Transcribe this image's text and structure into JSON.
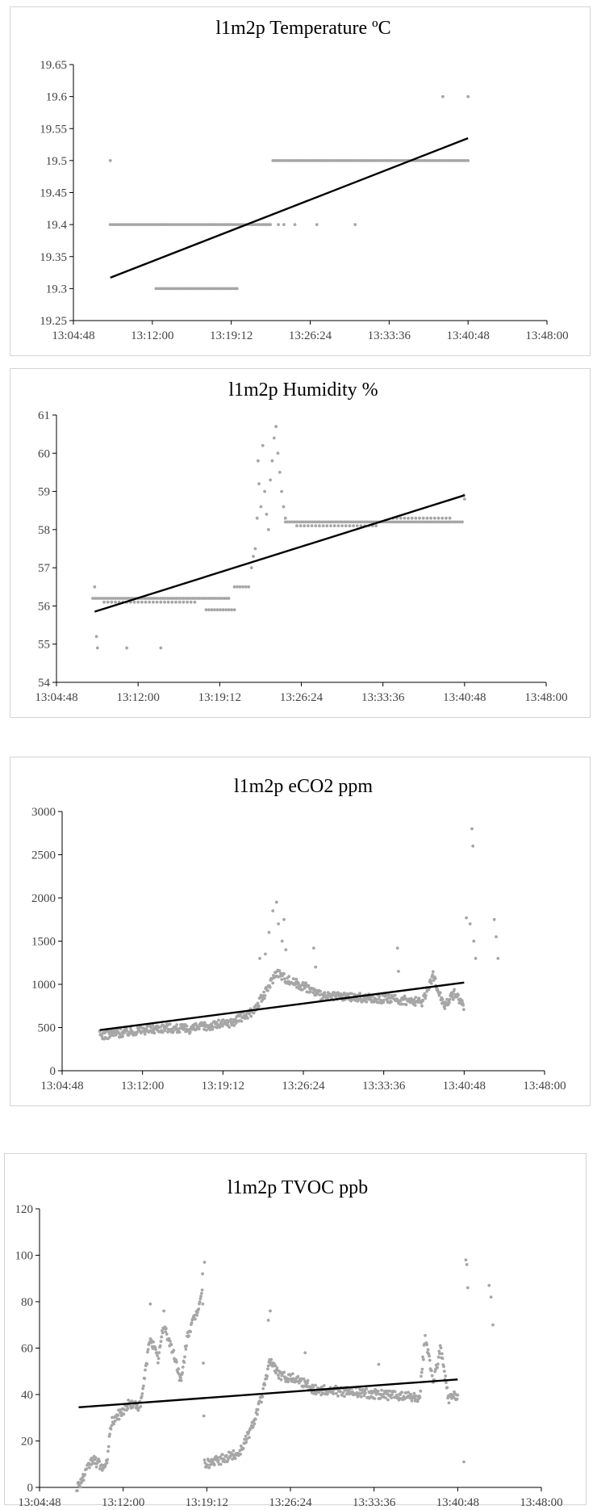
{
  "chart_data": [
    {
      "type": "scatter",
      "title": "l1m2p Temperature ºC",
      "x_ticks": [
        "13:04:48",
        "13:12:00",
        "13:19:12",
        "13:26:24",
        "13:33:36",
        "13:40:48",
        "13:48:00"
      ],
      "x_range": [
        "13:04:48",
        "13:48:00"
      ],
      "y_ticks": [
        "19.25",
        "19.3",
        "19.35",
        "19.4",
        "19.45",
        "19.5",
        "19.55",
        "19.6",
        "19.65"
      ],
      "ylim": [
        19.25,
        19.65
      ],
      "grid": false,
      "legend": "none",
      "series": [
        {
          "kind": "points",
          "segments": [
            {
              "start": "13:08:10",
              "end": "13:22:50",
              "y": 19.4,
              "step_s": 12
            },
            {
              "start": "13:12:20",
              "end": "13:19:50",
              "y": 19.3,
              "step_s": 12
            },
            {
              "start": "13:23:00",
              "end": "13:40:48",
              "y": 19.5,
              "step_s": 12
            }
          ],
          "points": [
            {
              "x": "13:08:10",
              "y": 19.5
            },
            {
              "x": "13:23:30",
              "y": 19.4
            },
            {
              "x": "13:24:00",
              "y": 19.4
            },
            {
              "x": "13:25:00",
              "y": 19.4
            },
            {
              "x": "13:27:00",
              "y": 19.4
            },
            {
              "x": "13:30:30",
              "y": 19.4
            },
            {
              "x": "13:38:30",
              "y": 19.6
            },
            {
              "x": "13:40:48",
              "y": 19.6
            }
          ]
        },
        {
          "kind": "trendline",
          "from": {
            "x": "13:08:10",
            "y": 19.317
          },
          "to": {
            "x": "13:40:48",
            "y": 19.535
          }
        }
      ],
      "colors": {
        "points": "#a6a6a6",
        "trendline": "#000000"
      }
    },
    {
      "type": "scatter",
      "title": "l1m2p Humidity %",
      "x_ticks": [
        "13:04:48",
        "13:12:00",
        "13:19:12",
        "13:26:24",
        "13:33:36",
        "13:40:48",
        "13:48:00"
      ],
      "x_range": [
        "13:04:48",
        "13:48:00"
      ],
      "y_ticks": [
        "54",
        "55",
        "56",
        "57",
        "58",
        "59",
        "60",
        "61"
      ],
      "ylim": [
        54,
        61
      ],
      "grid": false,
      "legend": "none",
      "series": [
        {
          "kind": "points",
          "segments": [
            {
              "start": "13:08:00",
              "end": "13:20:00",
              "y": 56.2,
              "step_s": 12
            },
            {
              "start": "13:09:00",
              "end": "13:17:00",
              "y": 56.1,
              "step_s": 20
            },
            {
              "start": "13:18:00",
              "end": "13:20:30",
              "y": 55.9,
              "step_s": 15
            },
            {
              "start": "13:20:30",
              "end": "13:21:45",
              "y": 56.5,
              "step_s": 15
            },
            {
              "start": "13:25:00",
              "end": "13:40:40",
              "y": 58.2,
              "step_s": 12
            },
            {
              "start": "13:26:00",
              "end": "13:33:00",
              "y": 58.1,
              "step_s": 20
            },
            {
              "start": "13:34:30",
              "end": "13:39:30",
              "y": 58.3,
              "step_s": 20
            }
          ],
          "points": [
            {
              "x": "13:08:10",
              "y": 56.5
            },
            {
              "x": "13:08:20",
              "y": 55.2
            },
            {
              "x": "13:08:25",
              "y": 54.9
            },
            {
              "x": "13:11:00",
              "y": 54.9
            },
            {
              "x": "13:14:00",
              "y": 54.9
            },
            {
              "x": "13:22:00",
              "y": 57.0
            },
            {
              "x": "13:22:10",
              "y": 57.3
            },
            {
              "x": "13:22:20",
              "y": 57.5
            },
            {
              "x": "13:22:30",
              "y": 58.3
            },
            {
              "x": "13:22:35",
              "y": 59.8
            },
            {
              "x": "13:22:40",
              "y": 59.2
            },
            {
              "x": "13:22:50",
              "y": 58.6
            },
            {
              "x": "13:23:00",
              "y": 60.2
            },
            {
              "x": "13:23:10",
              "y": 59.0
            },
            {
              "x": "13:23:20",
              "y": 58.4
            },
            {
              "x": "13:23:30",
              "y": 58.0
            },
            {
              "x": "13:23:40",
              "y": 59.3
            },
            {
              "x": "13:23:50",
              "y": 59.8
            },
            {
              "x": "13:24:00",
              "y": 60.4
            },
            {
              "x": "13:24:10",
              "y": 60.7
            },
            {
              "x": "13:24:20",
              "y": 60.0
            },
            {
              "x": "13:24:30",
              "y": 59.5
            },
            {
              "x": "13:24:40",
              "y": 59.0
            },
            {
              "x": "13:24:50",
              "y": 58.6
            },
            {
              "x": "13:25:00",
              "y": 58.3
            },
            {
              "x": "13:40:48",
              "y": 58.8
            },
            {
              "x": "13:40:45",
              "y": 58.9
            }
          ]
        },
        {
          "kind": "trendline",
          "from": {
            "x": "13:08:10",
            "y": 55.85
          },
          "to": {
            "x": "13:40:48",
            "y": 58.9
          }
        }
      ],
      "colors": {
        "points": "#a6a6a6",
        "trendline": "#000000"
      }
    },
    {
      "type": "scatter",
      "title": "l1m2p eCO2 ppm",
      "x_ticks": [
        "13:04:48",
        "13:12:00",
        "13:19:12",
        "13:26:24",
        "13:33:36",
        "13:40:48",
        "13:48:00"
      ],
      "x_range": [
        "13:04:48",
        "13:48:00"
      ],
      "y_ticks": [
        "0",
        "500",
        "1000",
        "1500",
        "2000",
        "2500",
        "3000"
      ],
      "ylim": [
        0,
        3000
      ],
      "grid": false,
      "legend": "none",
      "series": [
        {
          "kind": "points",
          "profile": [
            {
              "x": "13:08:10",
              "y": 410
            },
            {
              "x": "13:12:00",
              "y": 470
            },
            {
              "x": "13:14:00",
              "y": 500
            },
            {
              "x": "13:16:00",
              "y": 480
            },
            {
              "x": "13:18:00",
              "y": 520
            },
            {
              "x": "13:20:00",
              "y": 560
            },
            {
              "x": "13:22:00",
              "y": 700
            },
            {
              "x": "13:23:00",
              "y": 900
            },
            {
              "x": "13:24:00",
              "y": 1150
            },
            {
              "x": "13:25:00",
              "y": 1050
            },
            {
              "x": "13:27:00",
              "y": 950
            },
            {
              "x": "13:28:00",
              "y": 860
            },
            {
              "x": "13:31:00",
              "y": 850
            },
            {
              "x": "13:35:00",
              "y": 820
            },
            {
              "x": "13:37:00",
              "y": 790
            },
            {
              "x": "13:38:00",
              "y": 1100
            },
            {
              "x": "13:39:00",
              "y": 760
            },
            {
              "x": "13:40:00",
              "y": 900
            },
            {
              "x": "13:40:48",
              "y": 750
            }
          ],
          "points": [
            {
              "x": "13:23:00",
              "y": 1350
            },
            {
              "x": "13:23:20",
              "y": 1600
            },
            {
              "x": "13:23:40",
              "y": 1850
            },
            {
              "x": "13:24:00",
              "y": 1950
            },
            {
              "x": "13:24:10",
              "y": 1700
            },
            {
              "x": "13:24:30",
              "y": 1500
            },
            {
              "x": "13:24:40",
              "y": 1750
            },
            {
              "x": "13:24:50",
              "y": 1400
            },
            {
              "x": "13:22:30",
              "y": 1300
            },
            {
              "x": "13:27:20",
              "y": 1420
            },
            {
              "x": "13:27:30",
              "y": 1200
            },
            {
              "x": "13:34:50",
              "y": 1420
            },
            {
              "x": "13:34:55",
              "y": 1150
            },
            {
              "x": "13:41:30",
              "y": 2800
            },
            {
              "x": "13:41:35",
              "y": 2600
            },
            {
              "x": "13:41:00",
              "y": 1770
            },
            {
              "x": "13:41:20",
              "y": 1700
            },
            {
              "x": "13:41:40",
              "y": 1500
            },
            {
              "x": "13:41:50",
              "y": 1300
            },
            {
              "x": "13:43:30",
              "y": 1750
            },
            {
              "x": "13:43:40",
              "y": 1550
            },
            {
              "x": "13:43:50",
              "y": 1300
            }
          ]
        },
        {
          "kind": "trendline",
          "from": {
            "x": "13:08:10",
            "y": 470
          },
          "to": {
            "x": "13:40:48",
            "y": 1020
          }
        }
      ],
      "colors": {
        "points": "#a6a6a6",
        "trendline": "#000000"
      }
    },
    {
      "type": "scatter",
      "title": "l1m2p TVOC ppb",
      "x_ticks": [
        "13:04:48",
        "13:12:00",
        "13:19:12",
        "13:26:24",
        "13:33:36",
        "13:40:48",
        "13:48:00"
      ],
      "x_range": [
        "13:04:48",
        "13:48:00"
      ],
      "y_ticks": [
        "0",
        "20",
        "40",
        "60",
        "80",
        "100",
        "120"
      ],
      "ylim": [
        0,
        120
      ],
      "grid": false,
      "legend": "none",
      "series": [
        {
          "kind": "points",
          "profile": [
            {
              "x": "13:08:00",
              "y": 0
            },
            {
              "x": "13:08:40",
              "y": 5
            },
            {
              "x": "13:09:20",
              "y": 12
            },
            {
              "x": "13:10:30",
              "y": 8
            },
            {
              "x": "13:11:00",
              "y": 28
            },
            {
              "x": "13:12:30",
              "y": 36
            },
            {
              "x": "13:13:30",
              "y": 35
            },
            {
              "x": "13:14:20",
              "y": 65
            },
            {
              "x": "13:15:00",
              "y": 55
            },
            {
              "x": "13:15:30",
              "y": 70
            },
            {
              "x": "13:16:30",
              "y": 55
            },
            {
              "x": "13:17:00",
              "y": 45
            },
            {
              "x": "13:17:30",
              "y": 65
            },
            {
              "x": "13:18:20",
              "y": 75
            },
            {
              "x": "13:18:50",
              "y": 85
            },
            {
              "x": "13:19:00",
              "y": 10
            },
            {
              "x": "13:20:30",
              "y": 12
            },
            {
              "x": "13:22:00",
              "y": 15
            },
            {
              "x": "13:23:00",
              "y": 25
            },
            {
              "x": "13:24:00",
              "y": 40
            },
            {
              "x": "13:24:40",
              "y": 55
            },
            {
              "x": "13:25:30",
              "y": 48
            },
            {
              "x": "13:27:00",
              "y": 47
            },
            {
              "x": "13:28:30",
              "y": 42
            },
            {
              "x": "13:32:00",
              "y": 41
            },
            {
              "x": "13:36:30",
              "y": 39
            },
            {
              "x": "13:37:30",
              "y": 38
            },
            {
              "x": "13:38:00",
              "y": 65
            },
            {
              "x": "13:38:40",
              "y": 45
            },
            {
              "x": "13:39:20",
              "y": 60
            },
            {
              "x": "13:40:00",
              "y": 38
            },
            {
              "x": "13:40:48",
              "y": 40
            }
          ],
          "points": [
            {
              "x": "13:14:20",
              "y": 79
            },
            {
              "x": "13:15:30",
              "y": 76
            },
            {
              "x": "13:19:00",
              "y": 97
            },
            {
              "x": "13:18:50",
              "y": 92
            },
            {
              "x": "13:24:40",
              "y": 76
            },
            {
              "x": "13:24:30",
              "y": 72
            },
            {
              "x": "13:27:40",
              "y": 58
            },
            {
              "x": "13:34:00",
              "y": 53
            },
            {
              "x": "13:41:30",
              "y": 98
            },
            {
              "x": "13:41:35",
              "y": 96
            },
            {
              "x": "13:41:40",
              "y": 86
            },
            {
              "x": "13:41:20",
              "y": 11
            },
            {
              "x": "13:43:30",
              "y": 87
            },
            {
              "x": "13:43:40",
              "y": 82
            },
            {
              "x": "13:43:50",
              "y": 70
            }
          ]
        },
        {
          "kind": "trendline",
          "from": {
            "x": "13:08:10",
            "y": 34.5
          },
          "to": {
            "x": "13:40:48",
            "y": 46.5
          }
        }
      ],
      "colors": {
        "points": "#a6a6a6",
        "trendline": "#000000"
      }
    }
  ]
}
